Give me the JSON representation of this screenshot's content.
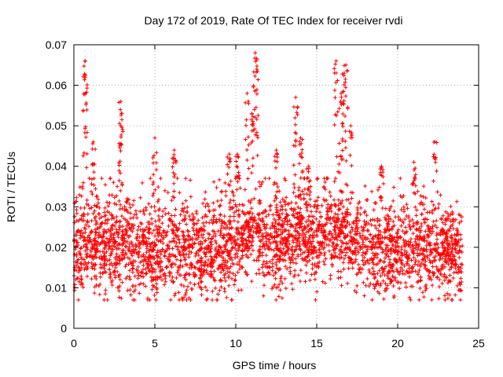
{
  "chart_data": {
    "type": "scatter",
    "title": "Day 172 of 2019, Rate Of TEC Index for receiver rvdi",
    "xlabel": "GPS time / hours",
    "ylabel": "ROTI / TECUs",
    "xlim": [
      0,
      25
    ],
    "ylim": [
      0,
      0.07
    ],
    "xticks": [
      "0",
      "5",
      "10",
      "15",
      "20",
      "25"
    ],
    "yticks": [
      "0",
      "0.01",
      "0.02",
      "0.03",
      "0.04",
      "0.05",
      "0.06",
      "0.07"
    ],
    "grid": true,
    "marker": "+",
    "color": "#ff0000",
    "series": [
      {
        "name": "ROTI",
        "x_range": [
          0,
          24
        ],
        "baseline": [
          [
            0,
            0.02
          ],
          [
            1,
            0.021
          ],
          [
            2,
            0.02
          ],
          [
            3,
            0.02
          ],
          [
            4,
            0.019
          ],
          [
            5,
            0.019
          ],
          [
            6,
            0.02
          ],
          [
            7,
            0.019
          ],
          [
            8,
            0.018
          ],
          [
            9,
            0.019
          ],
          [
            10,
            0.021
          ],
          [
            11,
            0.024
          ],
          [
            12,
            0.021
          ],
          [
            13,
            0.022
          ],
          [
            14,
            0.023
          ],
          [
            15,
            0.022
          ],
          [
            16,
            0.024
          ],
          [
            17,
            0.022
          ],
          [
            18,
            0.02
          ],
          [
            19,
            0.019
          ],
          [
            20,
            0.019
          ],
          [
            21,
            0.019
          ],
          [
            22,
            0.019
          ],
          [
            23,
            0.019
          ],
          [
            24,
            0.018
          ]
        ],
        "spread_range": [
          0.007,
          0.037
        ],
        "peaks": [
          [
            0.7,
            0.066
          ],
          [
            0.7,
            0.062
          ],
          [
            1.2,
            0.046
          ],
          [
            2.9,
            0.056
          ],
          [
            2.9,
            0.05
          ],
          [
            5.0,
            0.047
          ],
          [
            6.2,
            0.044
          ],
          [
            9.6,
            0.043
          ],
          [
            10.1,
            0.043
          ],
          [
            10.7,
            0.058
          ],
          [
            11.0,
            0.053
          ],
          [
            11.2,
            0.068
          ],
          [
            11.3,
            0.064
          ],
          [
            12.5,
            0.044
          ],
          [
            13.7,
            0.057
          ],
          [
            14.0,
            0.047
          ],
          [
            14.5,
            0.04
          ],
          [
            16.2,
            0.066
          ],
          [
            16.5,
            0.058
          ],
          [
            16.8,
            0.065
          ],
          [
            16.7,
            0.063
          ],
          [
            17.1,
            0.05
          ],
          [
            19.0,
            0.04
          ],
          [
            21.0,
            0.041
          ],
          [
            22.3,
            0.046
          ]
        ]
      }
    ]
  }
}
